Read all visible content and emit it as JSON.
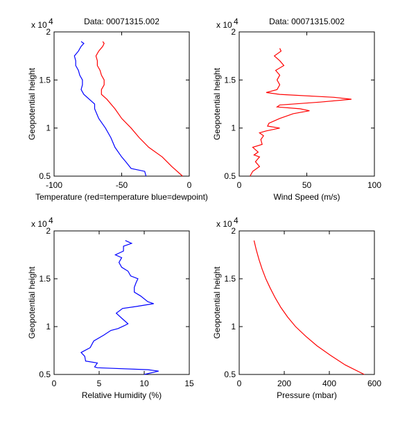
{
  "chart_data": [
    {
      "type": "line",
      "title": "Data: 00071315.002",
      "xlabel": "Temperature (red=temperature blue=dewpoint)",
      "ylabel": "Geopotential height",
      "y_multiplier": "x 10",
      "y_exponent": "4",
      "xlim": [
        -100,
        0
      ],
      "ylim": [
        0.5,
        2
      ],
      "xticks": [
        "-100",
        "-50",
        "0"
      ],
      "xtick_values": [
        -100,
        -50,
        0
      ],
      "yticks": [
        "0.5",
        "1",
        "1.5",
        "2"
      ],
      "ytick_values": [
        0.5,
        1,
        1.5,
        2
      ],
      "series": [
        {
          "name": "temperature",
          "color": "#ff0000",
          "points": [
            [
              -5,
              0.5
            ],
            [
              -13,
              0.6
            ],
            [
              -20,
              0.7
            ],
            [
              -30,
              0.8
            ],
            [
              -37,
              0.9
            ],
            [
              -43,
              1.0
            ],
            [
              -50,
              1.1
            ],
            [
              -55,
              1.2
            ],
            [
              -61,
              1.3
            ],
            [
              -65,
              1.35
            ],
            [
              -65,
              1.4
            ],
            [
              -63,
              1.45
            ],
            [
              -63,
              1.5
            ],
            [
              -65,
              1.55
            ],
            [
              -66,
              1.6
            ],
            [
              -68,
              1.65
            ],
            [
              -68,
              1.7
            ],
            [
              -69,
              1.75
            ],
            [
              -67,
              1.8
            ],
            [
              -64,
              1.85
            ],
            [
              -63,
              1.88
            ],
            [
              -64,
              1.9
            ]
          ]
        },
        {
          "name": "dewpoint",
          "color": "#0000ff",
          "points": [
            [
              -32,
              0.5
            ],
            [
              -33,
              0.55
            ],
            [
              -43,
              0.58
            ],
            [
              -47,
              0.65
            ],
            [
              -50,
              0.7
            ],
            [
              -55,
              0.8
            ],
            [
              -58,
              0.9
            ],
            [
              -62,
              1.0
            ],
            [
              -67,
              1.1
            ],
            [
              -70,
              1.2
            ],
            [
              -70,
              1.25
            ],
            [
              -74,
              1.3
            ],
            [
              -78,
              1.35
            ],
            [
              -80,
              1.4
            ],
            [
              -79,
              1.45
            ],
            [
              -79,
              1.5
            ],
            [
              -81,
              1.55
            ],
            [
              -82,
              1.6
            ],
            [
              -84,
              1.65
            ],
            [
              -84,
              1.7
            ],
            [
              -85,
              1.75
            ],
            [
              -82,
              1.8
            ],
            [
              -80,
              1.85
            ],
            [
              -78,
              1.88
            ],
            [
              -80,
              1.9
            ]
          ]
        }
      ]
    },
    {
      "type": "line",
      "title": "Data: 00071315.002",
      "xlabel": "Wind Speed (m/s)",
      "ylabel": "Geopotential height",
      "y_multiplier": "x 10",
      "y_exponent": "4",
      "xlim": [
        0,
        100
      ],
      "ylim": [
        0.5,
        2
      ],
      "xticks": [
        "0",
        "50",
        "100"
      ],
      "xtick_values": [
        0,
        50,
        100
      ],
      "yticks": [
        "0.5",
        "1",
        "1.5",
        "2"
      ],
      "ytick_values": [
        0.5,
        1,
        1.5,
        2
      ],
      "series": [
        {
          "name": "wind speed",
          "color": "#ff0000",
          "points": [
            [
              8,
              0.5
            ],
            [
              10,
              0.55
            ],
            [
              15,
              0.6
            ],
            [
              12,
              0.65
            ],
            [
              15,
              0.7
            ],
            [
              11,
              0.72
            ],
            [
              14,
              0.75
            ],
            [
              10,
              0.8
            ],
            [
              17,
              0.83
            ],
            [
              16,
              0.88
            ],
            [
              18,
              0.92
            ],
            [
              15,
              0.95
            ],
            [
              20,
              0.97
            ],
            [
              30,
              1.0
            ],
            [
              21,
              1.02
            ],
            [
              22,
              1.05
            ],
            [
              30,
              1.1
            ],
            [
              40,
              1.15
            ],
            [
              52,
              1.18
            ],
            [
              45,
              1.2
            ],
            [
              28,
              1.22
            ],
            [
              30,
              1.24
            ],
            [
              60,
              1.27
            ],
            [
              83,
              1.3
            ],
            [
              70,
              1.32
            ],
            [
              30,
              1.35
            ],
            [
              20,
              1.37
            ],
            [
              28,
              1.4
            ],
            [
              30,
              1.45
            ],
            [
              28,
              1.5
            ],
            [
              30,
              1.55
            ],
            [
              27,
              1.6
            ],
            [
              33,
              1.65
            ],
            [
              30,
              1.7
            ],
            [
              26,
              1.75
            ],
            [
              31,
              1.8
            ],
            [
              30,
              1.83
            ]
          ]
        }
      ]
    },
    {
      "type": "line",
      "title": "",
      "xlabel": "Relative Humidity (%)",
      "ylabel": "Geopotential height",
      "y_multiplier": "x 10",
      "y_exponent": "4",
      "xlim": [
        0,
        15
      ],
      "ylim": [
        0.5,
        2
      ],
      "xticks": [
        "0",
        "5",
        "10",
        "15"
      ],
      "xtick_values": [
        0,
        5,
        10,
        15
      ],
      "yticks": [
        "0.5",
        "1",
        "1.5",
        "2"
      ],
      "ytick_values": [
        0.5,
        1,
        1.5,
        2
      ],
      "series": [
        {
          "name": "relative humidity",
          "color": "#0000ff",
          "points": [
            [
              10.0,
              0.5
            ],
            [
              11.6,
              0.535
            ],
            [
              10.4,
              0.55
            ],
            [
              4.8,
              0.57
            ],
            [
              4.5,
              0.58
            ],
            [
              4.8,
              0.62
            ],
            [
              3.5,
              0.64
            ],
            [
              3.4,
              0.69
            ],
            [
              3.0,
              0.73
            ],
            [
              4.0,
              0.78
            ],
            [
              4.4,
              0.85
            ],
            [
              5.5,
              0.91
            ],
            [
              6.3,
              0.96
            ],
            [
              7.1,
              0.98
            ],
            [
              7.8,
              1.01
            ],
            [
              8.2,
              1.03
            ],
            [
              7.6,
              1.08
            ],
            [
              6.9,
              1.14
            ],
            [
              7.6,
              1.19
            ],
            [
              9.1,
              1.21
            ],
            [
              11.05,
              1.24
            ],
            [
              10.4,
              1.26
            ],
            [
              9.6,
              1.32
            ],
            [
              8.9,
              1.36
            ],
            [
              8.9,
              1.41
            ],
            [
              9.1,
              1.46
            ],
            [
              9.3,
              1.5
            ],
            [
              8.5,
              1.53
            ],
            [
              8.2,
              1.58
            ],
            [
              7.5,
              1.62
            ],
            [
              7.2,
              1.67
            ],
            [
              7.5,
              1.72
            ],
            [
              6.8,
              1.75
            ],
            [
              7.7,
              1.79
            ],
            [
              7.7,
              1.84
            ],
            [
              8.6,
              1.87
            ],
            [
              7.9,
              1.9
            ]
          ]
        }
      ]
    },
    {
      "type": "line",
      "title": "",
      "xlabel": "Pressure (mbar)",
      "ylabel": "Geopotential height",
      "y_multiplier": "x 10",
      "y_exponent": "4",
      "xlim": [
        0,
        600
      ],
      "ylim": [
        0.5,
        2
      ],
      "xticks": [
        "0",
        "200",
        "400",
        "600"
      ],
      "xtick_values": [
        0,
        200,
        400,
        600
      ],
      "yticks": [
        "0.5",
        "1",
        "1.5",
        "2"
      ],
      "ytick_values": [
        0.5,
        1,
        1.5,
        2
      ],
      "series": [
        {
          "name": "pressure",
          "color": "#ff0000",
          "points": [
            [
              555,
              0.5
            ],
            [
              470,
              0.6
            ],
            [
              405,
              0.7
            ],
            [
              345,
              0.8
            ],
            [
              295,
              0.9
            ],
            [
              250,
              1.0
            ],
            [
              215,
              1.1
            ],
            [
              185,
              1.2
            ],
            [
              160,
              1.3
            ],
            [
              138,
              1.4
            ],
            [
              118,
              1.5
            ],
            [
              102,
              1.6
            ],
            [
              88,
              1.7
            ],
            [
              76,
              1.8
            ],
            [
              66,
              1.9
            ]
          ]
        }
      ]
    }
  ]
}
